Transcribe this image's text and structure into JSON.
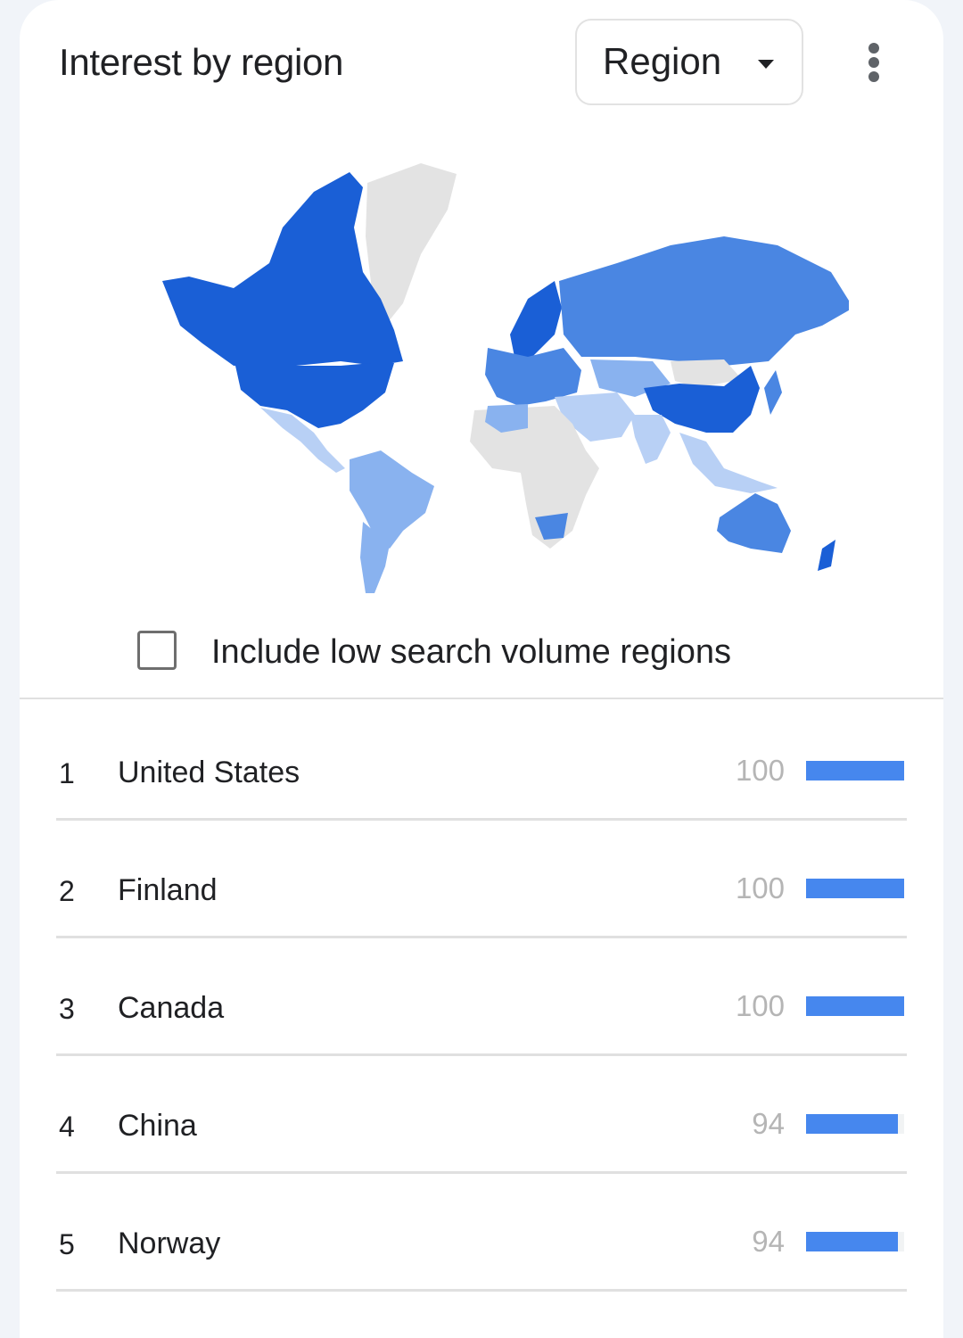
{
  "header": {
    "title": "Interest by region",
    "region_select": "Region",
    "more_icon": "more-vert-icon"
  },
  "map": {
    "colors": {
      "darkest": "#1a5fd6",
      "dark": "#4a86e2",
      "medium": "#89b2ef",
      "light": "#b8d0f5",
      "no_data": "#e3e3e3"
    }
  },
  "low_volume_checkbox": {
    "label": "Include low search volume regions",
    "checked": false
  },
  "bar_color": "#4687ee",
  "rows": [
    {
      "rank": "1",
      "name": "United States",
      "value": "100",
      "percent": 100
    },
    {
      "rank": "2",
      "name": "Finland",
      "value": "100",
      "percent": 100
    },
    {
      "rank": "3",
      "name": "Canada",
      "value": "100",
      "percent": 100
    },
    {
      "rank": "4",
      "name": "China",
      "value": "94",
      "percent": 94
    },
    {
      "rank": "5",
      "name": "Norway",
      "value": "94",
      "percent": 94
    }
  ]
}
